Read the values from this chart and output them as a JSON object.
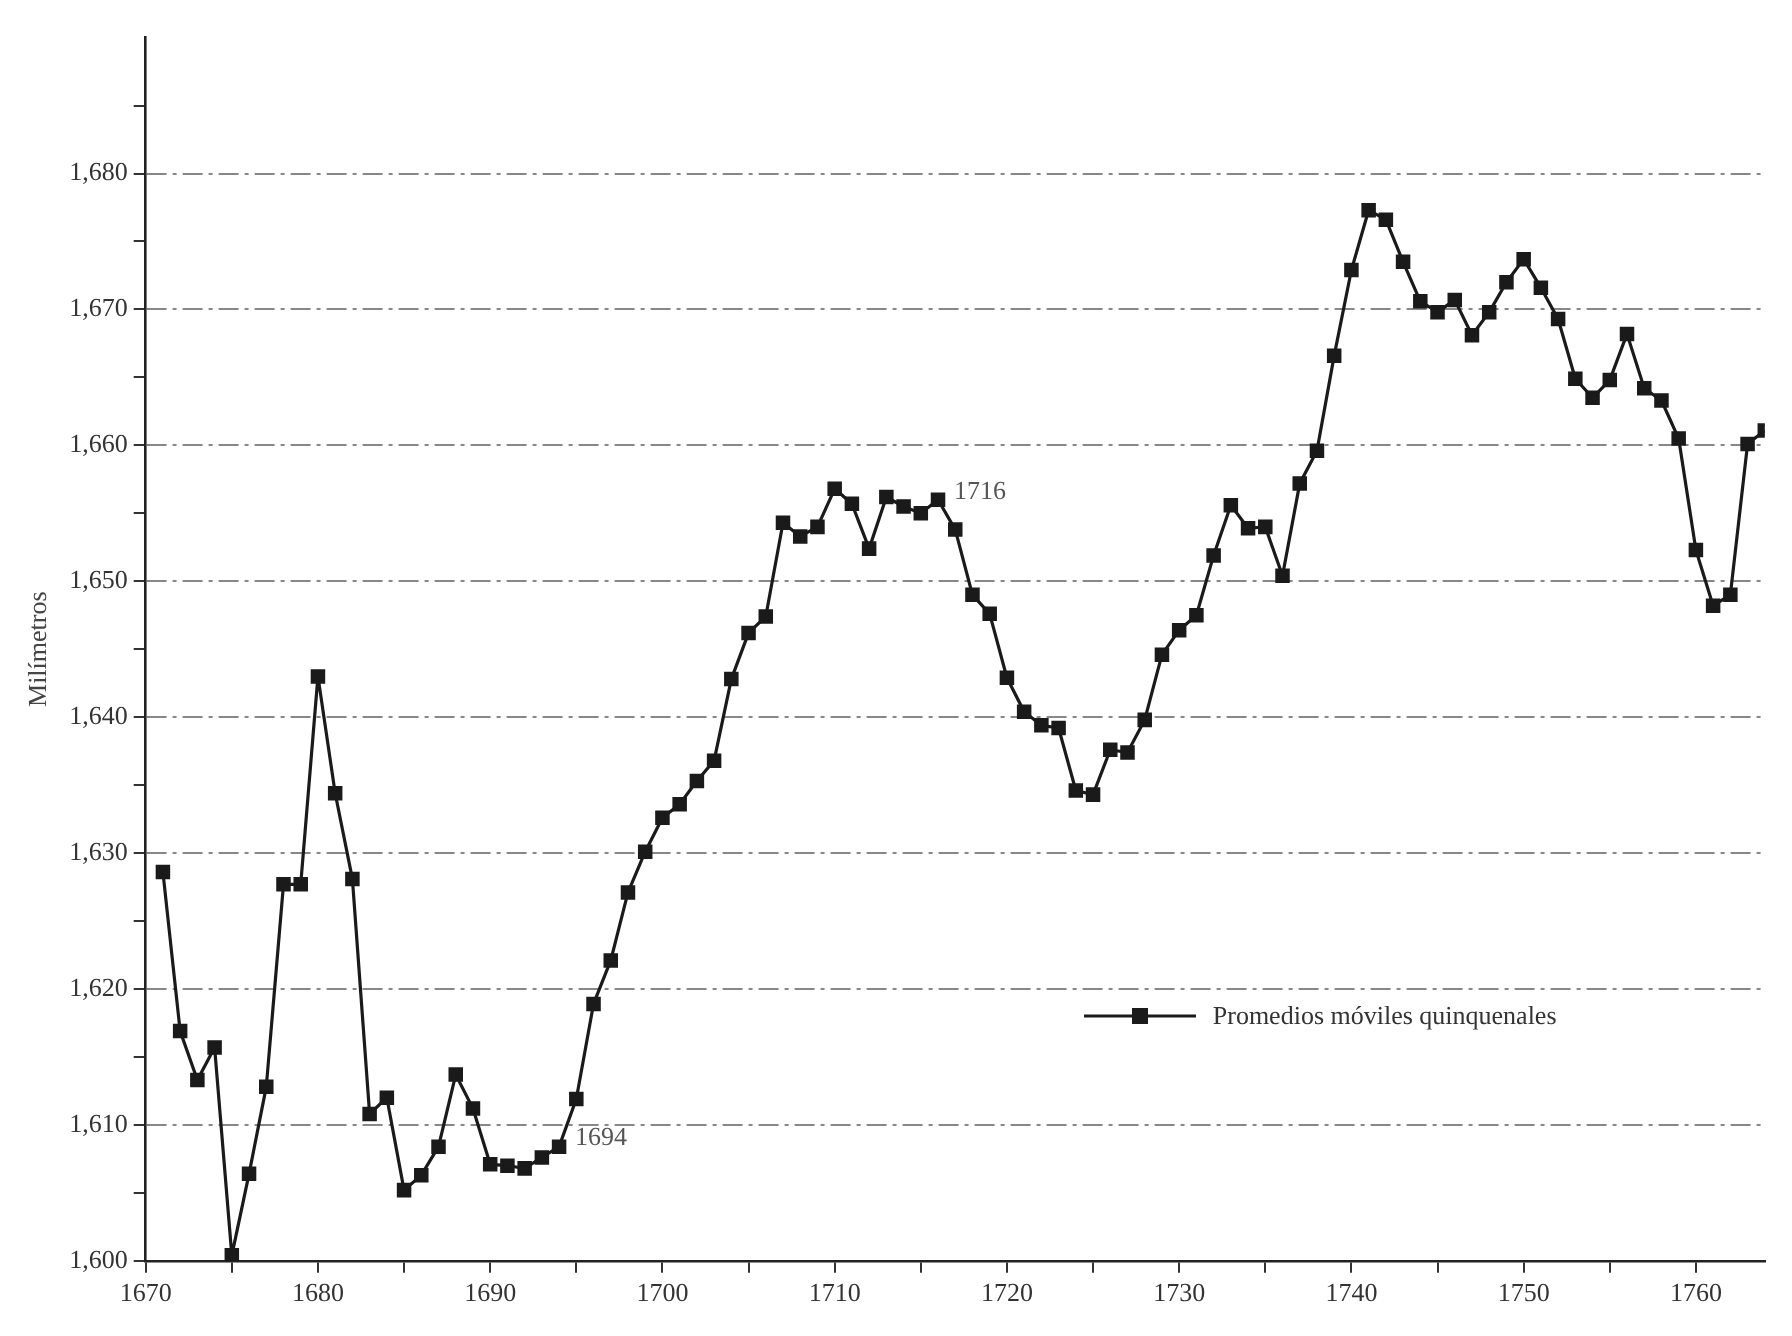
{
  "chart_data": {
    "type": "line",
    "ylabel": "Milímetros",
    "x": [
      1671,
      1672,
      1673,
      1674,
      1675,
      1676,
      1677,
      1678,
      1679,
      1680,
      1681,
      1682,
      1683,
      1684,
      1685,
      1686,
      1687,
      1688,
      1689,
      1690,
      1691,
      1692,
      1693,
      1694,
      1695,
      1696,
      1697,
      1698,
      1699,
      1700,
      1701,
      1702,
      1703,
      1704,
      1705,
      1706,
      1707,
      1708,
      1709,
      1710,
      1711,
      1712,
      1713,
      1714,
      1715,
      1716,
      1717,
      1718,
      1719,
      1720,
      1721,
      1722,
      1723,
      1724,
      1725,
      1726,
      1727,
      1728,
      1729,
      1730,
      1731,
      1732,
      1733,
      1734,
      1735,
      1736,
      1737,
      1738,
      1739,
      1740,
      1741,
      1742,
      1743,
      1744,
      1745,
      1746,
      1747,
      1748,
      1749,
      1750,
      1751,
      1752,
      1753,
      1754,
      1755,
      1756,
      1757,
      1758,
      1759,
      1760,
      1761,
      1762,
      1763,
      1764
    ],
    "series": [
      {
        "name": "Promedios móviles quinquenales",
        "color": "#1a1a1a",
        "values": [
          1628.6,
          1616.9,
          1613.3,
          1615.7,
          1600.4,
          1606.4,
          1612.8,
          1627.7,
          1627.7,
          1643,
          1634.4,
          1628.1,
          1610.8,
          1612,
          1605.2,
          1606.3,
          1608.4,
          1613.7,
          1611.2,
          1607.1,
          1607,
          1606.8,
          1607.6,
          1608.4,
          1611.9,
          1618.9,
          1622.1,
          1627.1,
          1630.1,
          1632.6,
          1633.6,
          1635.3,
          1636.8,
          1642.8,
          1646.2,
          1647.4,
          1654.3,
          1653.3,
          1654,
          1656.8,
          1655.7,
          1652.4,
          1656.2,
          1655.5,
          1655,
          1656,
          1653.8,
          1649,
          1647.6,
          1642.9,
          1640.4,
          1639.4,
          1639.2,
          1634.6,
          1634.3,
          1637.6,
          1637.4,
          1639.8,
          1644.6,
          1646.4,
          1647.5,
          1651.9,
          1655.6,
          1653.9,
          1654,
          1650.4,
          1657.2,
          1659.6,
          1666.6,
          1672.9,
          1677.3,
          1676.6,
          1673.5,
          1670.6,
          1669.8,
          1670.7,
          1668.1,
          1669.8,
          1672,
          1673.7,
          1671.6,
          1669.3,
          1664.9,
          1663.5,
          1664.8,
          1668.2,
          1664.2,
          1663.3,
          1660.5,
          1652.3,
          1648.2,
          1649,
          1660.1,
          1661.1
        ]
      }
    ],
    "xlim": [
      1670,
      1764
    ],
    "xticks": [
      {
        "value": 1670,
        "label": "1670"
      },
      {
        "value": 1675,
        "label": null
      },
      {
        "value": 1680,
        "label": "1680"
      },
      {
        "value": 1685,
        "label": null
      },
      {
        "value": 1690,
        "label": "1690"
      },
      {
        "value": 1695,
        "label": null
      },
      {
        "value": 1700,
        "label": "1700"
      },
      {
        "value": 1705,
        "label": null
      },
      {
        "value": 1710,
        "label": "1710"
      },
      {
        "value": 1715,
        "label": null
      },
      {
        "value": 1720,
        "label": "1720"
      },
      {
        "value": 1725,
        "label": null
      },
      {
        "value": 1730,
        "label": "1730"
      },
      {
        "value": 1735,
        "label": null
      },
      {
        "value": 1740,
        "label": "1740"
      },
      {
        "value": 1745,
        "label": null
      },
      {
        "value": 1750,
        "label": "1750"
      },
      {
        "value": 1755,
        "label": null
      },
      {
        "value": 1760,
        "label": "1760"
      }
    ],
    "ylim": [
      1600,
      1690
    ],
    "yticks": [
      {
        "value": 1600,
        "label": "1,600"
      },
      {
        "value": 1605,
        "label": null
      },
      {
        "value": 1610,
        "label": "1,610"
      },
      {
        "value": 1615,
        "label": null
      },
      {
        "value": 1620,
        "label": "1,620"
      },
      {
        "value": 1625,
        "label": null
      },
      {
        "value": 1630,
        "label": "1,630"
      },
      {
        "value": 1635,
        "label": null
      },
      {
        "value": 1640,
        "label": "1,640"
      },
      {
        "value": 1645,
        "label": null
      },
      {
        "value": 1650,
        "label": "1,650"
      },
      {
        "value": 1655,
        "label": null
      },
      {
        "value": 1660,
        "label": "1,660"
      },
      {
        "value": 1665,
        "label": null
      },
      {
        "value": 1670,
        "label": "1,670"
      },
      {
        "value": 1675,
        "label": null
      },
      {
        "value": 1680,
        "label": "1,680"
      },
      {
        "value": 1685,
        "label": null
      }
    ],
    "annotations": [
      {
        "text": "1694",
        "x": 1694,
        "y": 1608.4
      },
      {
        "text": "1716",
        "x": 1716,
        "y": 1656
      }
    ],
    "grid": "y",
    "legend": "bottom right",
    "marker": "square",
    "line_style": "solid"
  }
}
